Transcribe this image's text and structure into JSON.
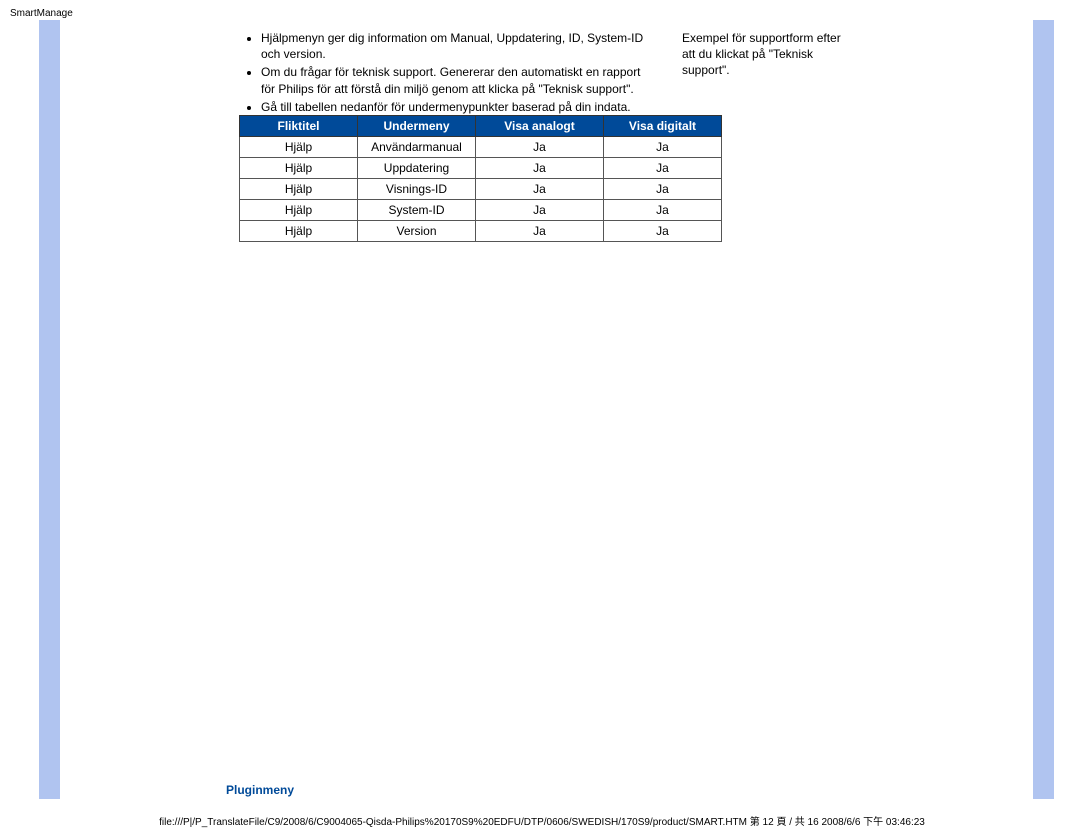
{
  "page": {
    "title": "SmartManage",
    "footer": "file:///P|/P_TranslateFile/C9/2008/6/C9004065-Qisda-Philips%20170S9%20EDFU/DTP/0606/SWEDISH/170S9/product/SMART.HTM 第 12 頁 / 共 16 2008/6/6 下午 03:46:23"
  },
  "bullets": {
    "items": [
      "Hjälpmenyn ger dig information om Manual, Uppdatering, ID, System-ID och version.",
      "Om du frågar för teknisk support. Genererar den automatiskt en rapport för Philips för att förstå din miljö genom att klicka på \"Teknisk support\".",
      "Gå till tabellen nedanför för undermenypunkter baserad på din indata."
    ]
  },
  "sideText": "Exempel för supportform efter att du klickat på \"Teknisk support\".",
  "table": {
    "headers": [
      "Fliktitel",
      "Undermeny",
      "Visa analogt",
      "Visa digitalt"
    ],
    "rows": [
      [
        "Hjälp",
        "Användarmanual",
        "Ja",
        "Ja"
      ],
      [
        "Hjälp",
        "Uppdatering",
        "Ja",
        "Ja"
      ],
      [
        "Hjälp",
        "Visnings-ID",
        "Ja",
        "Ja"
      ],
      [
        "Hjälp",
        "System-ID",
        "Ja",
        "Ja"
      ],
      [
        "Hjälp",
        "Version",
        "Ja",
        "Ja"
      ]
    ]
  },
  "sectionHeading": "Pluginmeny"
}
